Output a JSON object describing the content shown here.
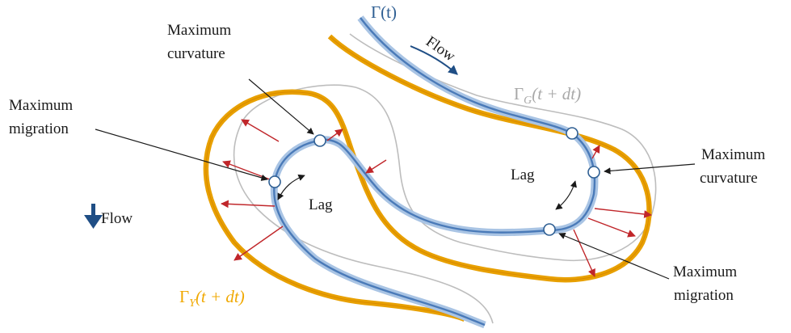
{
  "labels": {
    "gamma_t": "Γ(t)",
    "gamma_g_base": "Γ",
    "gamma_g_sub": "G",
    "gamma_g_arg": "(t + dt)",
    "gamma_y_base": "Γ",
    "gamma_y_sub": "Y",
    "gamma_y_arg": "(t + dt)",
    "flow_top": "Flow",
    "flow_left": "Flow",
    "max_curvature_1_line1": "Maximum",
    "max_curvature_1_line2": "curvature",
    "max_migration_1_line1": "Maximum",
    "max_migration_1_line2": "migration",
    "lag_1": "Lag",
    "lag_2": "Lag",
    "max_curvature_2_line1": "Maximum",
    "max_curvature_2_line2": "curvature",
    "max_migration_2_line1": "Maximum",
    "max_migration_2_line2": "migration"
  },
  "colors": {
    "channel": "#4a7ab8",
    "channel_halo": "#a9c4e4",
    "yellow": "#f0a800",
    "gray": "#bdbdbd",
    "migration_arrow": "#c0262a",
    "flow_arrow": "#1f4e85",
    "text": "#1a1a1a"
  }
}
